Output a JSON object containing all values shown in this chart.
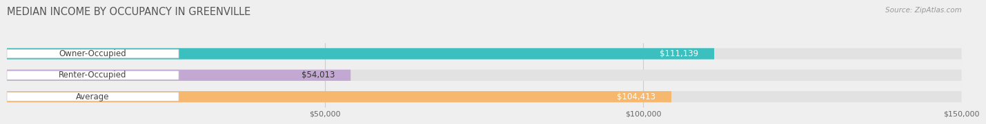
{
  "title": "MEDIAN INCOME BY OCCUPANCY IN GREENVILLE",
  "source": "Source: ZipAtlas.com",
  "categories": [
    "Owner-Occupied",
    "Renter-Occupied",
    "Average"
  ],
  "values": [
    111139,
    54013,
    104413
  ],
  "labels": [
    "$111,139",
    "$54,013",
    "$104,413"
  ],
  "bar_colors": [
    "#3bbfbf",
    "#c4a8d4",
    "#f5b86e"
  ],
  "background_color": "#efefef",
  "xlim": [
    0,
    150000
  ],
  "xticks": [
    50000,
    100000,
    150000
  ],
  "xticklabels": [
    "$50,000",
    "$100,000",
    "$150,000"
  ],
  "title_fontsize": 10.5,
  "label_fontsize": 8.5,
  "tick_fontsize": 8,
  "bar_height": 0.52,
  "bar_gap": 0.18
}
